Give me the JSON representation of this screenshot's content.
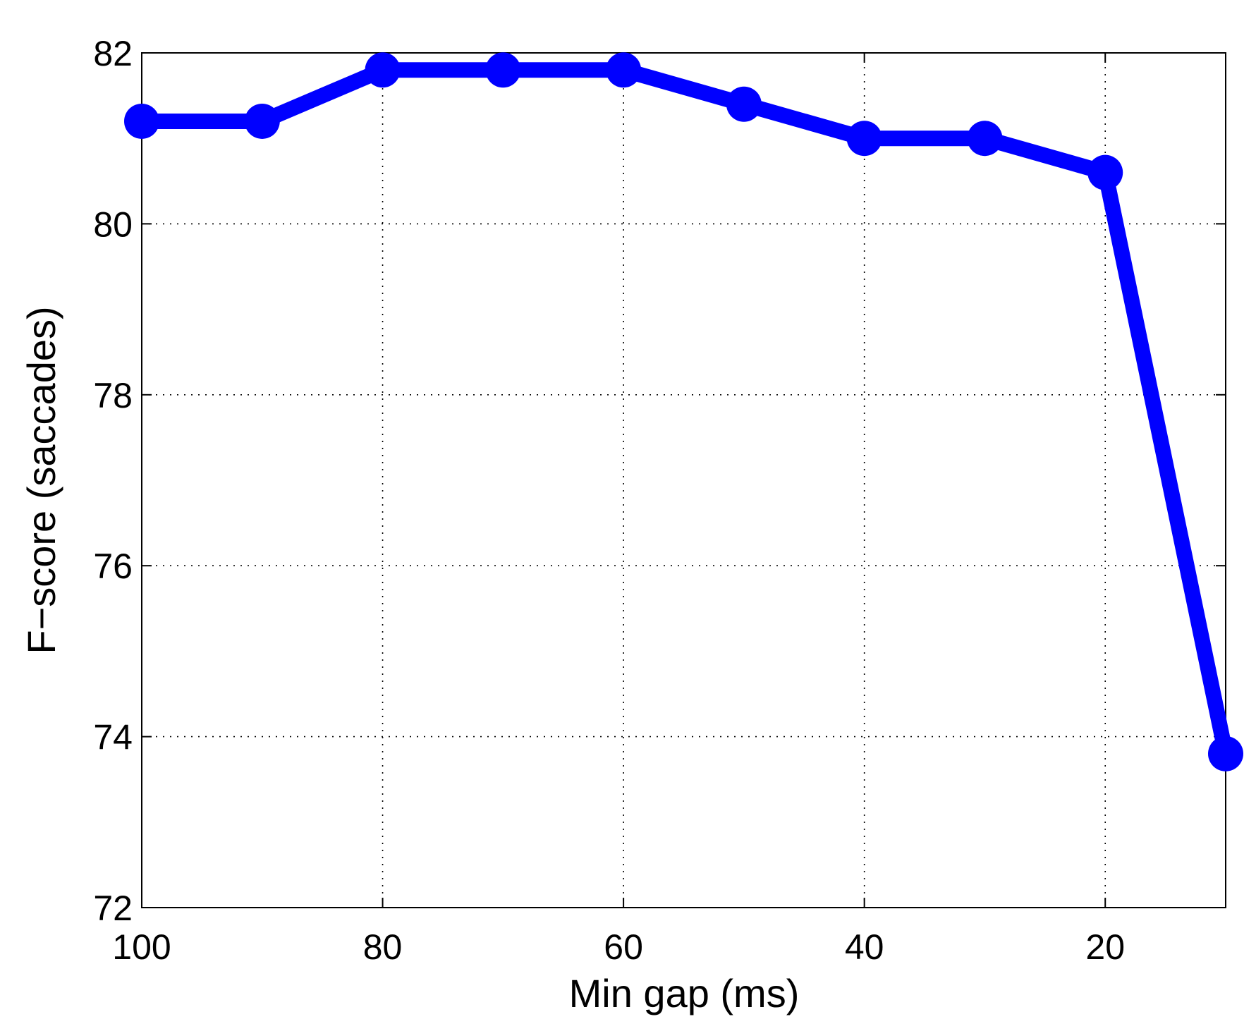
{
  "chart_data": {
    "type": "line",
    "xlabel": "Min gap (ms)",
    "ylabel": "F−score (saccades)",
    "xlim": [
      100,
      10
    ],
    "x_reversed": true,
    "ylim": [
      72,
      82
    ],
    "xticks": [
      100,
      80,
      60,
      40,
      20
    ],
    "yticks": [
      72,
      74,
      76,
      78,
      80,
      82
    ],
    "grid": true,
    "series": [
      {
        "color": "#0000ff",
        "marker": "circle",
        "x": [
          100,
          90,
          80,
          70,
          60,
          50,
          40,
          30,
          20,
          10
        ],
        "y": [
          81.2,
          81.2,
          81.8,
          81.8,
          81.8,
          81.4,
          81.0,
          81.0,
          80.6,
          73.8
        ]
      }
    ]
  }
}
